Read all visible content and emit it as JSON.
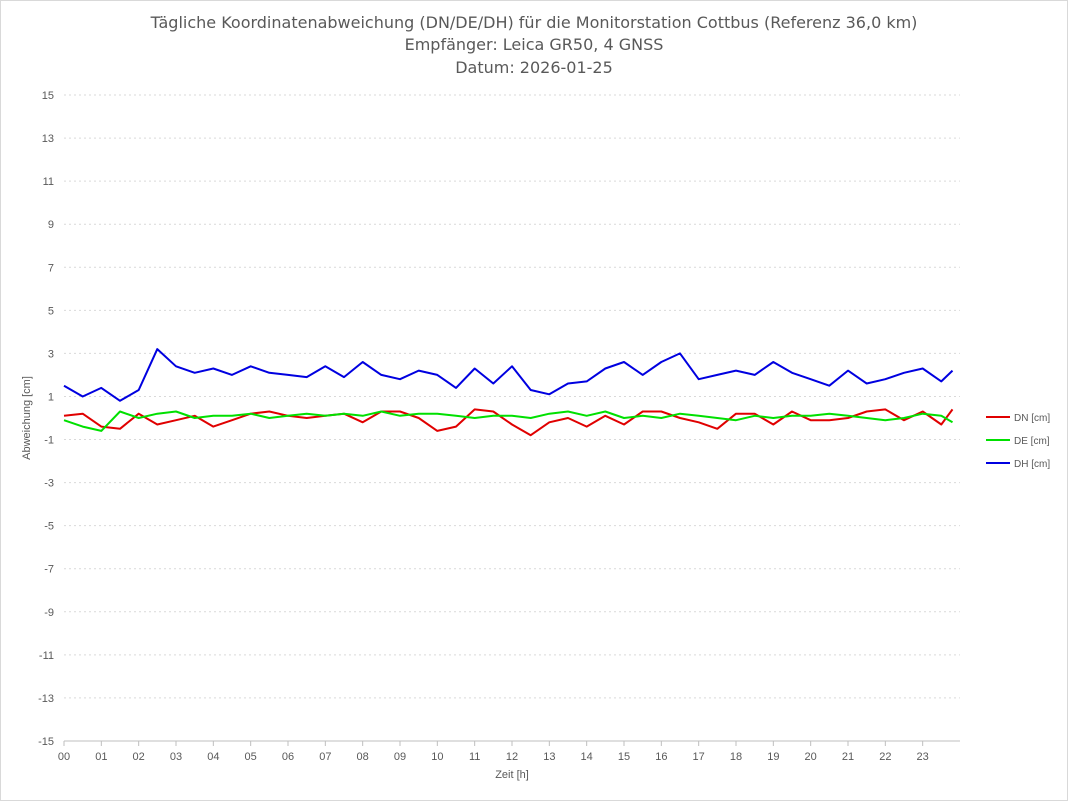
{
  "chart_data": {
    "type": "line",
    "title": [
      "Tägliche Koordinatenabweichung (DN/DE/DH) für die Monitorstation Cottbus (Referenz 36,0 km)",
      "Empfänger: Leica GR50, 4 GNSS",
      "Datum: 2026-01-25"
    ],
    "xlabel": "Zeit [h]",
    "ylabel": "Abweichung [cm]",
    "xlim": [
      0,
      24
    ],
    "ylim": [
      -15,
      15
    ],
    "x_ticks": [
      "00",
      "01",
      "02",
      "03",
      "04",
      "05",
      "06",
      "07",
      "08",
      "09",
      "10",
      "11",
      "12",
      "13",
      "14",
      "15",
      "16",
      "17",
      "18",
      "19",
      "20",
      "21",
      "22",
      "23"
    ],
    "y_ticks": [
      15,
      13,
      11,
      9,
      7,
      5,
      3,
      1,
      -1,
      -3,
      -5,
      -7,
      -9,
      -11,
      -13,
      -15
    ],
    "grid": true,
    "legend_position": "right",
    "series": [
      {
        "name": "DN [cm]",
        "color": "#e00000",
        "x": [
          0,
          0.5,
          1,
          1.5,
          2,
          2.5,
          3,
          3.5,
          4,
          4.5,
          5,
          5.5,
          6,
          6.5,
          7,
          7.5,
          8,
          8.5,
          9,
          9.5,
          10,
          10.5,
          11,
          11.5,
          12,
          12.5,
          13,
          13.5,
          14,
          14.5,
          15,
          15.5,
          16,
          16.5,
          17,
          17.5,
          18,
          18.5,
          19,
          19.5,
          20,
          20.5,
          21,
          21.5,
          22,
          22.5,
          23,
          23.5,
          23.8
        ],
        "values": [
          0.1,
          0.2,
          -0.4,
          -0.5,
          0.2,
          -0.3,
          -0.1,
          0.1,
          -0.4,
          -0.1,
          0.2,
          0.3,
          0.1,
          0.0,
          0.1,
          0.2,
          -0.2,
          0.3,
          0.3,
          0.0,
          -0.6,
          -0.4,
          0.4,
          0.3,
          -0.3,
          -0.8,
          -0.2,
          0.0,
          -0.4,
          0.1,
          -0.3,
          0.3,
          0.3,
          0.0,
          -0.2,
          -0.5,
          0.2,
          0.2,
          -0.3,
          0.3,
          -0.1,
          -0.1,
          0.0,
          0.3,
          0.4,
          -0.1,
          0.3,
          -0.3,
          0.4
        ]
      },
      {
        "name": "DE [cm]",
        "color": "#00e000",
        "x": [
          0,
          0.5,
          1,
          1.5,
          2,
          2.5,
          3,
          3.5,
          4,
          4.5,
          5,
          5.5,
          6,
          6.5,
          7,
          7.5,
          8,
          8.5,
          9,
          9.5,
          10,
          10.5,
          11,
          11.5,
          12,
          12.5,
          13,
          13.5,
          14,
          14.5,
          15,
          15.5,
          16,
          16.5,
          17,
          17.5,
          18,
          18.5,
          19,
          19.5,
          20,
          20.5,
          21,
          21.5,
          22,
          22.5,
          23,
          23.5,
          23.8
        ],
        "values": [
          -0.1,
          -0.4,
          -0.6,
          0.3,
          0.0,
          0.2,
          0.3,
          0.0,
          0.1,
          0.1,
          0.2,
          0.0,
          0.1,
          0.2,
          0.1,
          0.2,
          0.1,
          0.3,
          0.1,
          0.2,
          0.2,
          0.1,
          0.0,
          0.1,
          0.1,
          0.0,
          0.2,
          0.3,
          0.1,
          0.3,
          0.0,
          0.1,
          0.0,
          0.2,
          0.1,
          0.0,
          -0.1,
          0.1,
          0.0,
          0.1,
          0.1,
          0.2,
          0.1,
          0.0,
          -0.1,
          0.0,
          0.2,
          0.1,
          -0.2
        ]
      },
      {
        "name": "DH [cm]",
        "color": "#0000e0",
        "x": [
          0,
          0.5,
          1,
          1.5,
          2,
          2.5,
          3,
          3.5,
          4,
          4.5,
          5,
          5.5,
          6,
          6.5,
          7,
          7.5,
          8,
          8.5,
          9,
          9.5,
          10,
          10.5,
          11,
          11.5,
          12,
          12.5,
          13,
          13.5,
          14,
          14.5,
          15,
          15.5,
          16,
          16.5,
          17,
          17.5,
          18,
          18.5,
          19,
          19.5,
          20,
          20.5,
          21,
          21.5,
          22,
          22.5,
          23,
          23.5,
          23.8
        ],
        "values": [
          1.5,
          1.0,
          1.4,
          0.8,
          1.3,
          3.2,
          2.4,
          2.1,
          2.3,
          2.0,
          2.4,
          2.1,
          2.0,
          1.9,
          2.4,
          1.9,
          2.6,
          2.0,
          1.8,
          2.2,
          2.0,
          1.4,
          2.3,
          1.6,
          2.4,
          1.3,
          1.1,
          1.6,
          1.7,
          2.3,
          2.6,
          2.0,
          2.6,
          3.0,
          1.8,
          2.0,
          2.2,
          2.0,
          2.6,
          2.1,
          1.8,
          1.5,
          2.2,
          1.6,
          1.8,
          2.1,
          2.3,
          1.7,
          2.2
        ]
      }
    ]
  }
}
